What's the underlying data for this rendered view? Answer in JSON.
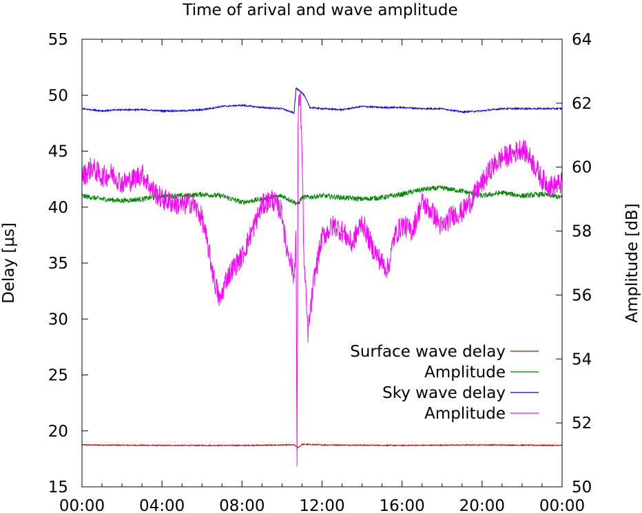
{
  "chart_data": {
    "type": "line",
    "title": "Time of arival and wave amplitude",
    "ylabel": "Delay [µs]",
    "y2label": "Amplitude [dB]",
    "xlabel": "",
    "x_range_hours": [
      0,
      24
    ],
    "x_ticks": [
      "00:00",
      "04:00",
      "08:00",
      "12:00",
      "16:00",
      "20:00",
      "00:00"
    ],
    "ylim": [
      15,
      55
    ],
    "y_ticks": [
      15,
      20,
      25,
      30,
      35,
      40,
      45,
      50,
      55
    ],
    "y2lim": [
      50,
      64
    ],
    "y2_ticks": [
      50,
      52,
      54,
      56,
      58,
      60,
      62,
      64
    ],
    "grid": false,
    "legend_position": "bottom-right",
    "series": [
      {
        "name": "Surface wave delay",
        "axis": "left",
        "color": "#cc0000",
        "noise": 0.05,
        "x": [
          0,
          4,
          8,
          10.6,
          10.8,
          11,
          12,
          16,
          20,
          24
        ],
        "y": [
          18.75,
          18.7,
          18.7,
          18.75,
          18.5,
          18.8,
          18.75,
          18.7,
          18.75,
          18.7
        ]
      },
      {
        "name": "Amplitude",
        "axis": "right",
        "color": "#008000",
        "noise": 0.08,
        "x": [
          0,
          1,
          2,
          3,
          4,
          5,
          6,
          7,
          8,
          9,
          10,
          10.8,
          11,
          12,
          13,
          14,
          15,
          16,
          17,
          18,
          19,
          20,
          21,
          22,
          23,
          24
        ],
        "y": [
          59.1,
          59.0,
          58.95,
          59.0,
          59.1,
          59.1,
          59.15,
          59.1,
          58.9,
          59.0,
          59.1,
          58.85,
          59.05,
          59.1,
          59.05,
          59.0,
          59.05,
          59.15,
          59.3,
          59.35,
          59.25,
          59.1,
          59.2,
          59.1,
          59.15,
          59.05
        ]
      },
      {
        "name": "Sky wave delay",
        "axis": "left",
        "color": "#0000cc",
        "noise": 0.07,
        "x": [
          0,
          1,
          2,
          3,
          4,
          5,
          6,
          7,
          8,
          9,
          10,
          10.6,
          10.7,
          10.9,
          11.1,
          11.4,
          12,
          13,
          14,
          15,
          16,
          17,
          18,
          19,
          20,
          21,
          22,
          23,
          24
        ],
        "y": [
          48.8,
          48.6,
          48.7,
          48.7,
          48.6,
          48.6,
          48.7,
          49.0,
          49.1,
          48.9,
          48.8,
          48.4,
          50.6,
          50.4,
          50.0,
          48.9,
          48.8,
          48.7,
          49.0,
          48.9,
          48.9,
          48.8,
          48.8,
          48.5,
          48.6,
          48.8,
          48.8,
          48.8,
          48.8
        ]
      },
      {
        "name": "Amplitude",
        "axis": "right",
        "color": "#ff00ff",
        "noise": 0.35,
        "x": [
          0,
          0.5,
          1,
          1.5,
          2,
          2.5,
          3,
          3.5,
          4,
          4.5,
          5,
          5.5,
          6,
          6.3,
          6.6,
          6.9,
          7.2,
          7.5,
          8,
          8.5,
          9,
          9.5,
          10,
          10.2,
          10.4,
          10.6,
          10.7,
          10.75,
          10.8,
          10.9,
          11,
          11.1,
          11.3,
          11.6,
          12,
          12.3,
          12.6,
          13,
          13.5,
          14,
          14.5,
          15,
          15.3,
          15.6,
          16,
          16.5,
          17,
          17.5,
          18,
          18.5,
          19,
          19.5,
          20,
          20.5,
          21,
          21.5,
          22,
          22.5,
          23,
          23.5,
          24
        ],
        "y": [
          59.7,
          60.0,
          59.7,
          59.8,
          59.5,
          59.6,
          59.8,
          59.3,
          59.0,
          58.9,
          58.8,
          58.9,
          58.4,
          57.5,
          56.5,
          55.8,
          56.5,
          56.8,
          57.2,
          58.0,
          58.8,
          59.0,
          58.6,
          57.5,
          57.2,
          56.5,
          58.0,
          50.2,
          61.5,
          62.5,
          60.5,
          57.0,
          54.8,
          56.5,
          57.8,
          58.0,
          58.2,
          58.0,
          57.6,
          58.3,
          57.5,
          57.0,
          56.8,
          57.8,
          58.2,
          58.0,
          58.9,
          58.6,
          58.1,
          58.5,
          58.6,
          59.0,
          59.5,
          60.0,
          60.3,
          60.4,
          60.6,
          60.2,
          59.6,
          59.4,
          59.5
        ]
      }
    ]
  }
}
